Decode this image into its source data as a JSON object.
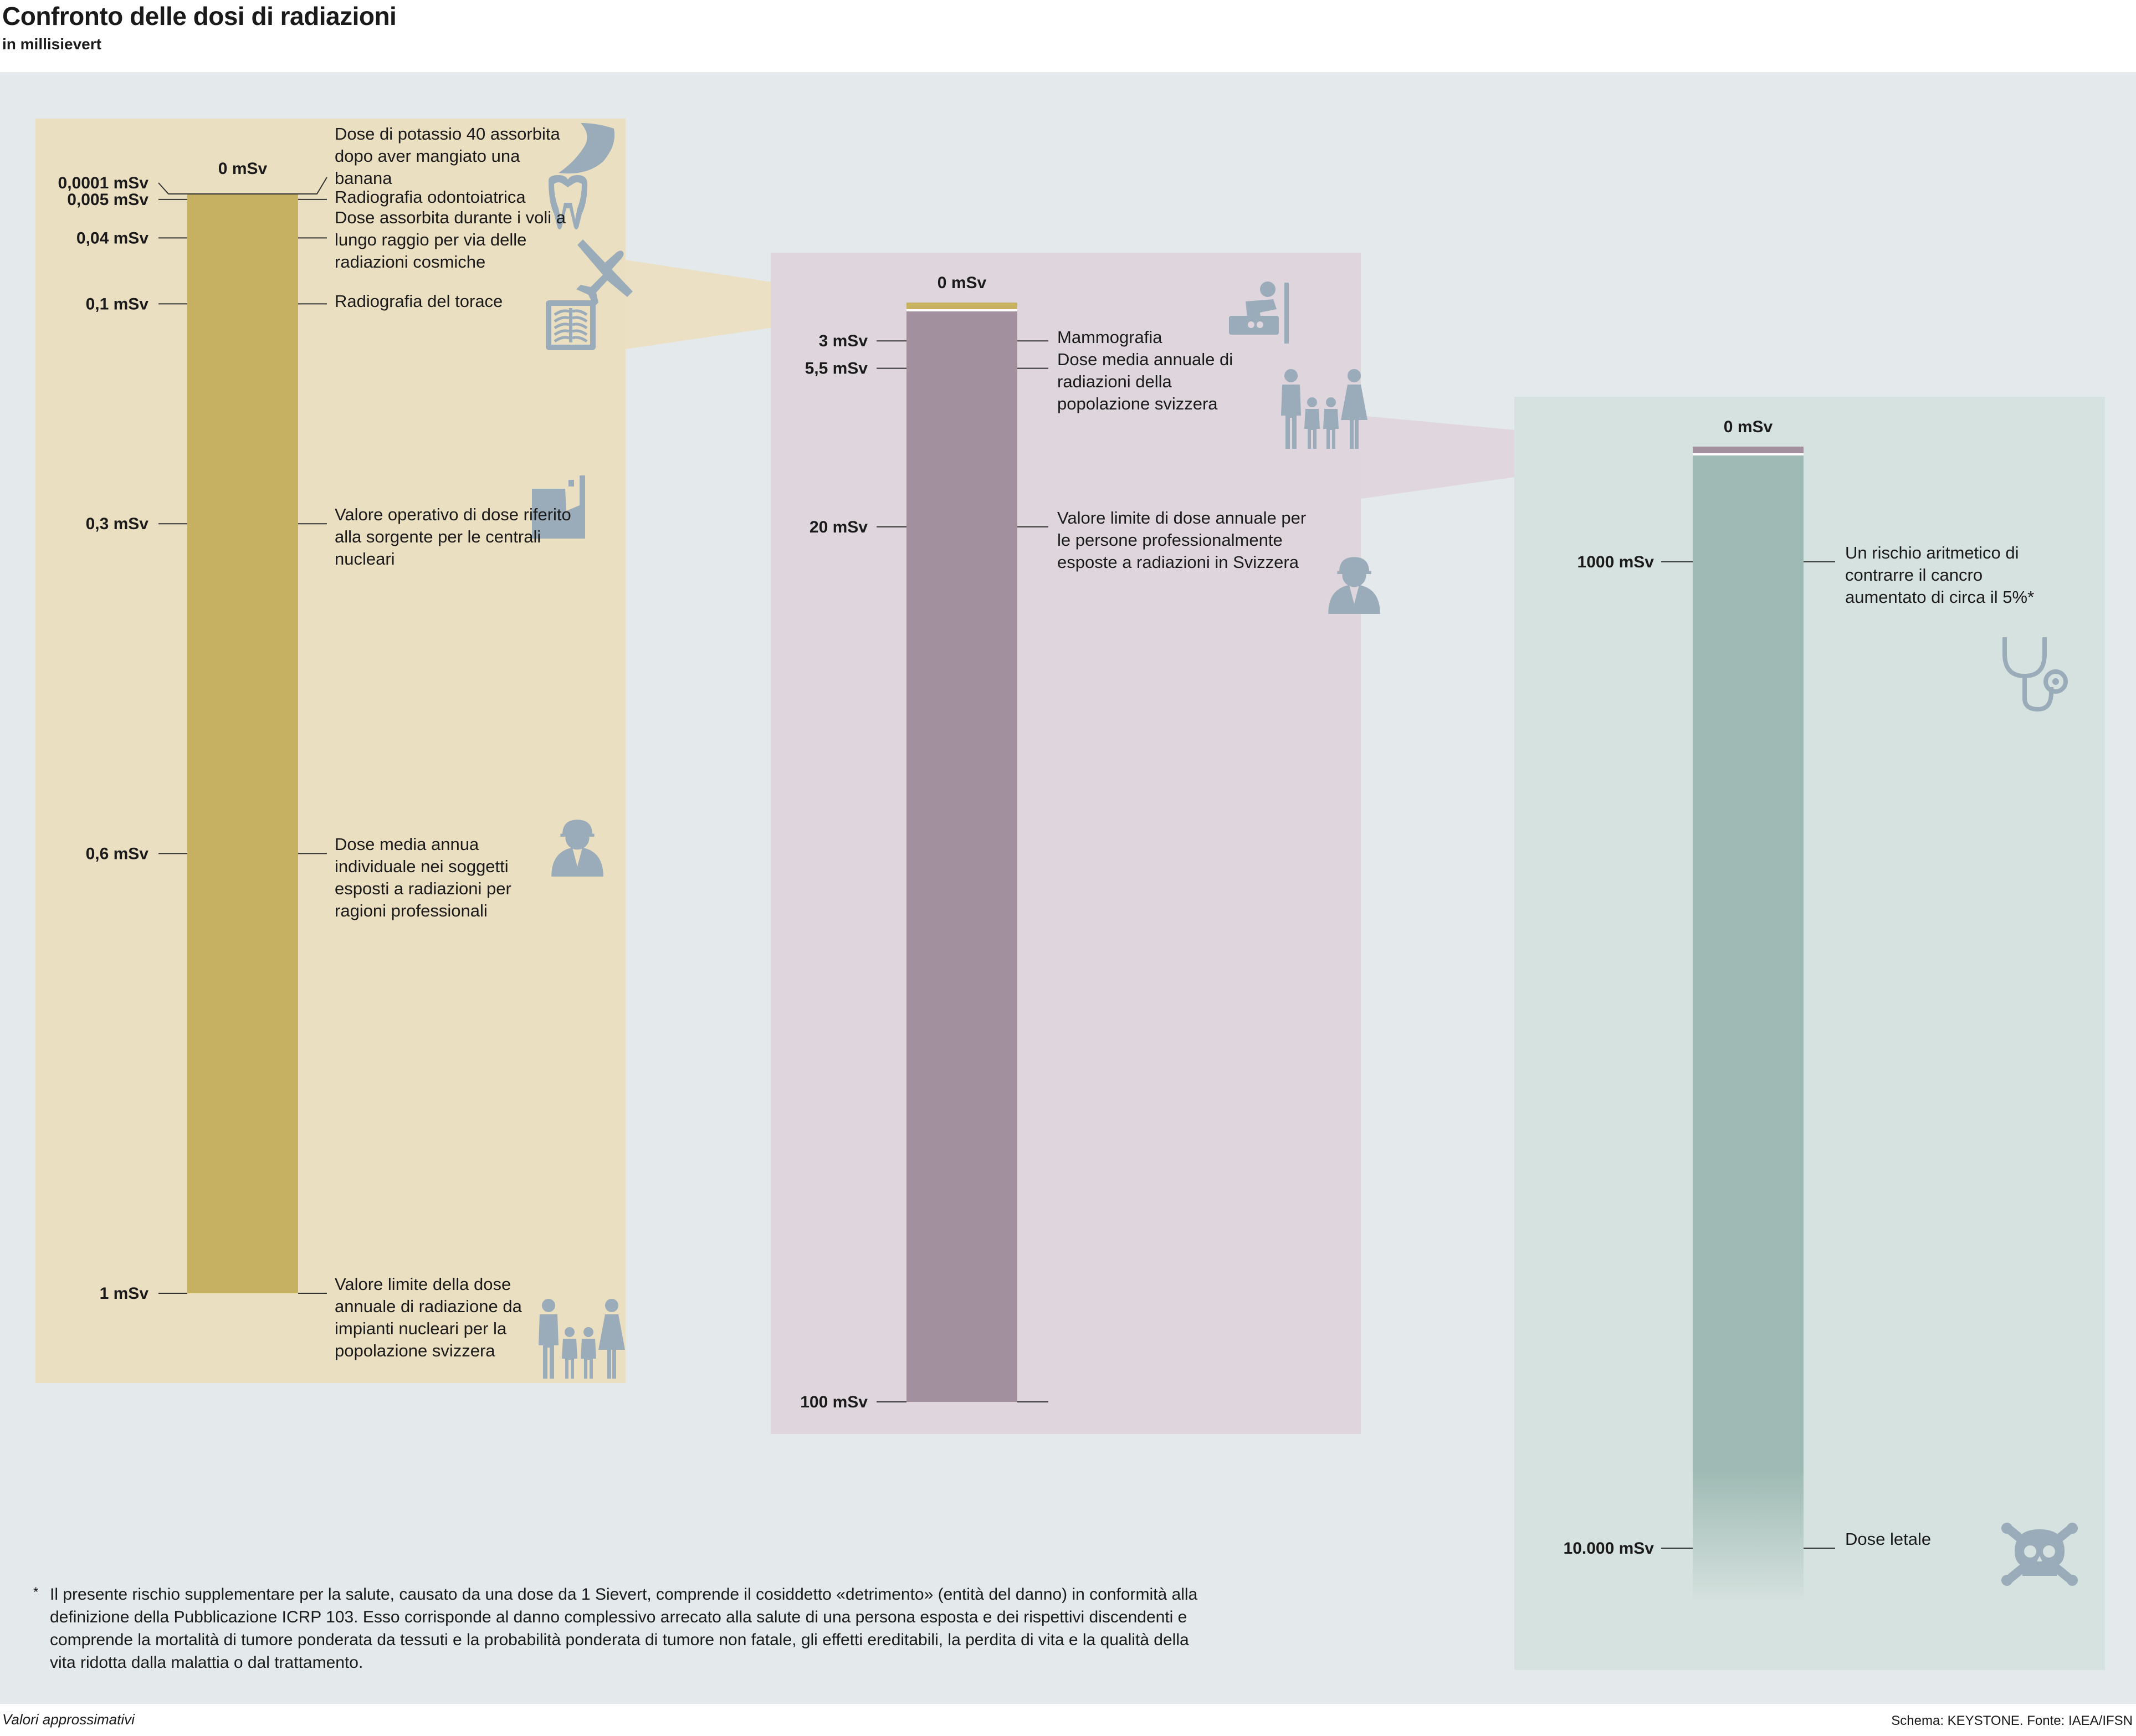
{
  "title": "Confronto delle dosi di radiazioni",
  "subtitle": "in millisievert",
  "footer": {
    "left": "Valori approssimativi",
    "right": "Schema: KEYSTONE. Fonte: IAEA/IFSN"
  },
  "footnote": {
    "marker": "*",
    "text": "Il presente rischio supplementare per la salute, causato da una dose da 1 Sievert, comprende il cosiddetto «detrimento» (entità del danno) in conformità alla definizione della Pubblicazione ICRP 103. Esso corrisponde al danno complessivo arrecato alla salute di una persona esposta e dei rispettivi discendenti e comprende la mortalità di tumore ponderata da tessuti e la probabilità ponderata di tumore non fatale, gli effetti ereditabili, la perdita di vita e la qualità della vita ridotta dalla malattia o dal trattamento."
  },
  "chart_data": [
    {
      "type": "bar",
      "unit": "mSv",
      "scale_max": 1,
      "zero_label": "0 mSv",
      "colors": {
        "panel": "#ebdfc2",
        "bar": "#c6b062"
      },
      "markers": [
        {
          "value": 0.0001,
          "label": "0,0001 mSv",
          "text": "Dose di potassio 40 assorbita dopo aver mangiato una banana",
          "icon": "banana-icon"
        },
        {
          "value": 0.005,
          "label": "0,005 mSv",
          "text": "Radiografia odontoiatrica",
          "icon": "tooth-icon"
        },
        {
          "value": 0.04,
          "label": "0,04 mSv",
          "text": "Dose assorbita durante i voli a lungo raggio per via delle radiazioni cosmiche",
          "icon": "airplane-icon"
        },
        {
          "value": 0.1,
          "label": "0,1 mSv",
          "text": "Radiografia del torace",
          "icon": "chest-xray-icon"
        },
        {
          "value": 0.3,
          "label": "0,3 mSv",
          "text": "Valore operativo di dose riferito alla sorgente per le centrali nucleari",
          "icon": "nuclear-plant-icon"
        },
        {
          "value": 0.6,
          "label": "0,6 mSv",
          "text": "Dose media annua individuale nei soggetti esposti a radiazioni per ragioni professionali",
          "icon": "worker-icon"
        },
        {
          "value": 1,
          "label": "1 mSv",
          "text": "Valore limite della dose annuale di radiazione da impianti nucleari per la popolazione svizzera",
          "icon": "family-icon"
        }
      ]
    },
    {
      "type": "bar",
      "unit": "mSv",
      "scale_max": 100,
      "zero_label": "0 mSv",
      "colors": {
        "panel": "#ded6dc",
        "bar": "#a3909f"
      },
      "markers": [
        {
          "value": 3,
          "label": "3 mSv",
          "text": "Mammografia",
          "icon": "mammography-icon"
        },
        {
          "value": 5.5,
          "label": "5,5 mSv",
          "text": "Dose media annuale di radiazioni della popolazione svizzera",
          "icon": "family-icon"
        },
        {
          "value": 20,
          "label": "20 mSv",
          "text": "Valore limite di dose annuale per le persone professionalmente esposte a radiazioni in Svizzera",
          "icon": "worker-icon"
        },
        {
          "value": 100,
          "label": "100 mSv",
          "text": "",
          "icon": ""
        }
      ]
    },
    {
      "type": "bar",
      "unit": "mSv",
      "scale_max": 10000,
      "zero_label": "0 mSv",
      "colors": {
        "panel": "#d6e2df",
        "bar": "#9fbab4"
      },
      "markers": [
        {
          "value": 1000,
          "label": "1000 mSv",
          "text": "Un rischio aritmetico di contrarre il cancro aumentato di circa il 5%*",
          "icon": "stethoscope-icon"
        },
        {
          "value": 10000,
          "label": "10.000 mSv",
          "text": "Dose letale",
          "icon": "skull-icon"
        }
      ]
    }
  ]
}
